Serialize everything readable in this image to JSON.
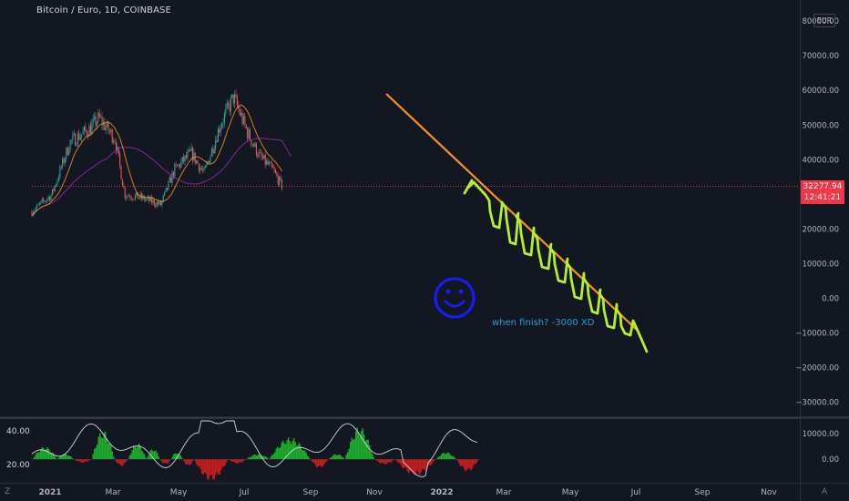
{
  "header": {
    "symbol_title": "Bitcoin / Euro, 1D, COINBASE",
    "currency_badge": "EUR"
  },
  "price_axis": {
    "labels": [
      "80000.00",
      "70000.00",
      "60000.00",
      "50000.00",
      "40000.00",
      "20000.00",
      "10000.00",
      "0.00",
      "−10000.00",
      "−20000.00",
      "−30000.00"
    ]
  },
  "last_price": {
    "value": "32277.94",
    "countdown": "12:41:21",
    "color": "#f23645"
  },
  "time_axis": {
    "labels": [
      "2021",
      "Mar",
      "May",
      "Jul",
      "Sep",
      "Nov",
      "2022",
      "Mar",
      "May",
      "Jul",
      "Sep",
      "Nov"
    ]
  },
  "indicator": {
    "left_labels": [
      "40.00",
      "20.00"
    ],
    "right_labels": [
      "10000.00",
      "0.00"
    ]
  },
  "annotation": {
    "note_text": "when finish? -3000 XD",
    "note_color": "#2a9fd6",
    "smiley_color": "#1a1aff",
    "trendline_color": "#f7931a",
    "projection_color": "#b4f02a"
  },
  "corner": {
    "bottom_left": "Z",
    "bottom_right": "A"
  },
  "colors": {
    "background": "#131722",
    "candle_up": "#26a69a",
    "candle_down": "#ef5350",
    "ma_fast": "#f7931a",
    "ma_slow": "#9c27b0",
    "hist_positive": "#1fbd2c",
    "hist_negative": "#d81e1e"
  },
  "chart_data": {
    "type": "line",
    "title": "Bitcoin / Euro, 1D, COINBASE",
    "xlabel": "",
    "ylabel": "",
    "ylim": [
      -30000,
      80000
    ],
    "series": [
      {
        "x": [
          "2021-01-01",
          "2021-02-01",
          "2021-03-01",
          "2021-04-01",
          "2021-04-15",
          "2021-05-10",
          "2021-05-25",
          "2021-06-20",
          "2021-07-20",
          "2021-08-10",
          "2021-09-05",
          "2021-09-25",
          "2021-10-20",
          "2021-11-10",
          "2021-12-01",
          "2021-12-20",
          "2022-01-10",
          "2022-01-24"
        ],
        "values": [
          25000,
          30000,
          45000,
          49000,
          52000,
          46000,
          30000,
          29000,
          27000,
          37000,
          42000,
          36000,
          50000,
          58000,
          48000,
          41000,
          37000,
          32278
        ]
      }
    ]
  }
}
